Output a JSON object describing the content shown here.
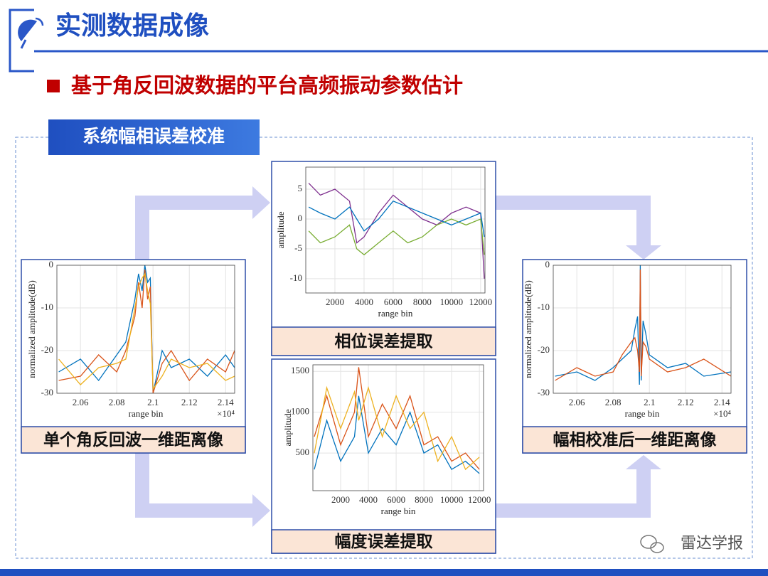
{
  "header": {
    "title": "实测数据成像"
  },
  "subtitle": "基于角反回波数据的平台高频振动参数估计",
  "section_label": "系统幅相误差校准",
  "panels": [
    {
      "caption": "单个角反回波一维距离像"
    },
    {
      "caption": "相位误差提取"
    },
    {
      "caption": "幅度误差提取"
    },
    {
      "caption": "幅相校准后一维距离像"
    }
  ],
  "watermark": "雷达学报",
  "chart_data": [
    {
      "type": "line",
      "xlabel": "range bin",
      "ylabel": "normalized amplitude(dB)",
      "x_multiplier": "×10⁴",
      "grid": true,
      "xlim": [
        20470,
        21450
      ],
      "ylim": [
        -30,
        0
      ],
      "xticks": [
        {
          "value": 20600,
          "label": "2.06"
        },
        {
          "value": 20800,
          "label": "2.08"
        },
        {
          "value": 21000,
          "label": "2.1"
        },
        {
          "value": 21200,
          "label": "2.12"
        },
        {
          "value": 21400,
          "label": "2.14"
        }
      ],
      "yticks": [
        -30,
        -20,
        -10,
        0
      ],
      "x": [
        20480,
        20600,
        20700,
        20800,
        20850,
        20900,
        20920,
        20940,
        20955,
        20970,
        20985,
        21000,
        21050,
        21100,
        21200,
        21300,
        21400,
        21450
      ],
      "series": [
        {
          "color": "#0072bd",
          "values": [
            -25,
            -22,
            -27,
            -21,
            -18,
            -8,
            -2,
            -6,
            0,
            -4,
            -3,
            -30,
            -20,
            -24,
            -22,
            -26,
            -21,
            -24
          ]
        },
        {
          "color": "#d95319",
          "values": [
            -27,
            -26,
            -21,
            -25,
            -20,
            -12,
            -4,
            -10,
            -1,
            -8,
            -5,
            -30,
            -23,
            -20,
            -27,
            -22,
            -25,
            -20
          ]
        },
        {
          "color": "#edb120",
          "values": [
            -22,
            -28,
            -24,
            -23,
            -22,
            -10,
            -5,
            -3,
            -2,
            -6,
            -9,
            -29,
            -26,
            -22,
            -24,
            -23,
            -27,
            -26
          ]
        }
      ]
    },
    {
      "type": "line",
      "xlabel": "range bin",
      "ylabel": "amplitude",
      "grid": true,
      "xlim": [
        0,
        12300
      ],
      "ylim": [
        -12.4,
        8.7
      ],
      "xticks": [
        2000,
        4000,
        6000,
        8000,
        10000,
        12000
      ],
      "yticks": [
        -10,
        -5,
        0,
        5
      ],
      "x": [
        200,
        1000,
        2000,
        3000,
        3500,
        4000,
        5000,
        6000,
        7000,
        8000,
        9000,
        10000,
        11000,
        12000,
        12250
      ],
      "series": [
        {
          "color": "#7e2f8e",
          "values": [
            6,
            4,
            5,
            3,
            -4,
            -3,
            1,
            4,
            2,
            0,
            -1,
            1,
            2,
            1,
            -10
          ]
        },
        {
          "color": "#77ac30",
          "values": [
            -2,
            -4,
            -3,
            -1,
            -5,
            -6,
            -4,
            -2,
            -4,
            -3,
            -1,
            0,
            -1,
            0,
            -6
          ]
        },
        {
          "color": "#0072bd",
          "values": [
            2,
            1,
            0,
            2,
            0,
            -2,
            0,
            3,
            2,
            1,
            0,
            -1,
            0,
            1,
            -3
          ]
        }
      ]
    },
    {
      "type": "line",
      "xlabel": "range bin",
      "ylabel": "amplitude",
      "grid": true,
      "xlim": [
        0,
        12300
      ],
      "ylim": [
        40,
        1580
      ],
      "xticks": [
        2000,
        4000,
        6000,
        8000,
        10000,
        12000
      ],
      "yticks": [
        500,
        1000,
        1500
      ],
      "x": [
        100,
        1000,
        2000,
        3000,
        3300,
        4000,
        5000,
        6000,
        7000,
        8000,
        9000,
        10000,
        11000,
        12000
      ],
      "series": [
        {
          "color": "#d95319",
          "values": [
            700,
            1200,
            600,
            1000,
            1550,
            700,
            1100,
            800,
            1200,
            600,
            700,
            400,
            500,
            300
          ]
        },
        {
          "color": "#0072bd",
          "values": [
            300,
            900,
            400,
            700,
            1200,
            500,
            800,
            600,
            1000,
            500,
            600,
            300,
            400,
            250
          ]
        },
        {
          "color": "#edb120",
          "values": [
            500,
            1300,
            800,
            1250,
            900,
            1300,
            700,
            1200,
            800,
            1000,
            400,
            700,
            300,
            450
          ]
        }
      ]
    },
    {
      "type": "line",
      "xlabel": "range bin",
      "ylabel": "normalized amplitude(dB)",
      "x_multiplier": "×10⁴",
      "grid": true,
      "xlim": [
        20470,
        21450
      ],
      "ylim": [
        -30,
        0
      ],
      "xticks": [
        {
          "value": 20600,
          "label": "2.06"
        },
        {
          "value": 20800,
          "label": "2.08"
        },
        {
          "value": 21000,
          "label": "2.1"
        },
        {
          "value": 21200,
          "label": "2.12"
        },
        {
          "value": 21400,
          "label": "2.14"
        }
      ],
      "yticks": [
        -30,
        -20,
        -10,
        0
      ],
      "x": [
        20480,
        20600,
        20700,
        20800,
        20850,
        20900,
        20920,
        20935,
        20945,
        20950,
        20955,
        20965,
        20980,
        21000,
        21100,
        21200,
        21300,
        21450
      ],
      "series": [
        {
          "color": "#0072bd",
          "values": [
            -26,
            -25,
            -27,
            -24,
            -22,
            -20,
            -15,
            -12,
            -28,
            0,
            -27,
            -13,
            -16,
            -21,
            -24,
            -23,
            -26,
            -25
          ]
        },
        {
          "color": "#d95319",
          "values": [
            -27,
            -24,
            -26,
            -25,
            -21,
            -18,
            -17,
            -20,
            -25,
            -1,
            -26,
            -18,
            -19,
            -22,
            -25,
            -24,
            -22,
            -26
          ]
        }
      ]
    }
  ]
}
